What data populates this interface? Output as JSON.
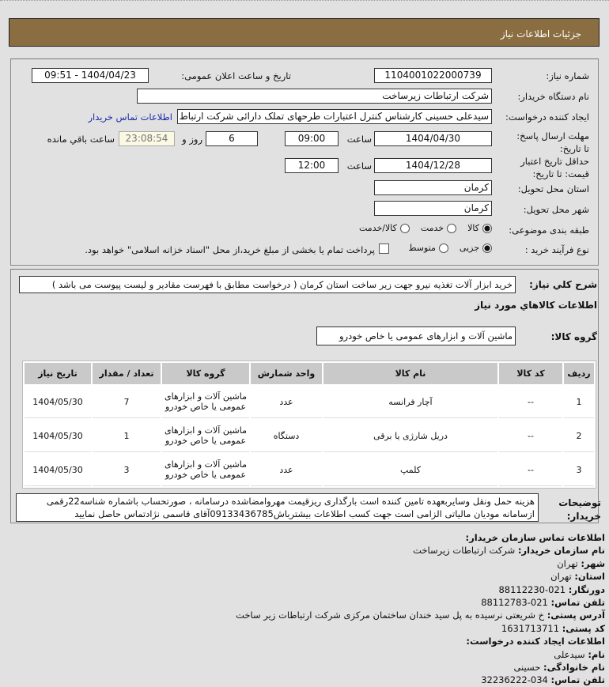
{
  "header": {
    "title": "جزئیات اطلاعات نیاز"
  },
  "form": {
    "need_number_label": "شماره نیاز:",
    "need_number": "1104001022000739",
    "announce_label": "تاریخ و ساعت اعلان عمومی:",
    "announce_value": "1404/04/23 - 09:51",
    "buyer_label": "نام دستگاه خریدار:",
    "buyer_value": "شرکت ارتباطات زیرساخت",
    "creator_label": "ایجاد کننده درخواست:",
    "creator_value": "سیدعلی حسینی کارشناس کنترل اعتبارات طرحهای تملک دارائی شرکت ارتباط",
    "contact_link": "اطلاعات تماس خریدار",
    "deadline_label": "مهلت ارسال پاسخ: تا تاریخ:",
    "deadline_date": "1404/04/30",
    "time_label": "ساعت",
    "deadline_time": "09:00",
    "days": "6",
    "days_label": "روز و",
    "remaining": "23:08:54",
    "remaining_label": "ساعت باقي مانده",
    "validity_label": "حداقل تاریخ اعتبار قیمت: تا تاریخ:",
    "validity_date": "1404/12/28",
    "validity_time": "12:00",
    "province_label": "استان محل تحویل:",
    "province_value": "کرمان",
    "city_label": "شهر محل تحویل:",
    "city_value": "کرمان",
    "category_label": "طبقه بندی موضوعی:",
    "category_options": [
      {
        "label": "کالا",
        "selected": true
      },
      {
        "label": "خدمت",
        "selected": false
      },
      {
        "label": "کالا/خدمت",
        "selected": false
      }
    ],
    "process_label": "نوع فرآیند خرید :",
    "process_options": [
      {
        "label": "جزیی",
        "selected": true
      },
      {
        "label": "متوسط",
        "selected": false
      }
    ],
    "payment_checkbox_label": "پرداخت تمام یا بخشی از مبلغ خرید،از محل \"اسناد خزانه اسلامی\" خواهد بود."
  },
  "details": {
    "summary_label": "شرح کلي نیاز:",
    "summary_value": "خرید ابزار آلات تغذیه نیرو جهت زیر ساخت استان کرمان ( درخواست مطابق با فهرست مقادیر و لیست پیوست می باشد )",
    "goods_title": "اطلاعات کالاهاي مورد نیاز",
    "group_label": "گروه کالا:",
    "group_value": "ماشین آلات و ابزارهای عمومی یا خاص خودرو",
    "table": {
      "headers": [
        "ردیف",
        "کد کالا",
        "نام کالا",
        "واحد شمارش",
        "گروه کالا",
        "تعداد / مقدار",
        "تاریخ نیاز"
      ],
      "rows": [
        [
          "1",
          "--",
          "آچار فرانسه",
          "عدد",
          "ماشین آلات و ابزارهای عمومی یا خاص خودرو",
          "7",
          "1404/05/30"
        ],
        [
          "2",
          "--",
          "دریل شارژی یا برقی",
          "دستگاه",
          "ماشین آلات و ابزارهای عمومی یا خاص خودرو",
          "1",
          "1404/05/30"
        ],
        [
          "3",
          "--",
          "کلمپ",
          "عدد",
          "ماشین آلات و ابزارهای عمومی یا خاص خودرو",
          "3",
          "1404/05/30"
        ]
      ]
    },
    "notes_label": "توضیحات خریدار:",
    "notes_value": "هزینه حمل ونقل وسایربعهده تامین کننده است بارگذاری ریزقیمت مهروامضاشده درسامانه ، صورتحساب باشماره شناسه22رقمی ازسامانه مودیان مالیاتی الزامی است جهت کسب اطلاعات بیشترباش09133436785آقای قاسمی نژادتماس حاصل نمایید"
  },
  "contact": {
    "org_title": "اطلاعات تماس سازمان خریدار:",
    "lines": [
      {
        "k": "نام سازمان خریدار:",
        "v": "شرکت ارتباطات زیرساخت"
      },
      {
        "k": "شهر:",
        "v": "تهران"
      },
      {
        "k": "استان:",
        "v": "تهران"
      },
      {
        "k": "دورنگار:",
        "v": "021-88112230"
      },
      {
        "k": "تلفن تماس:",
        "v": "021-88112783"
      },
      {
        "k": "آدرس پستی:",
        "v": "خ شریعتی نرسیده به پل سید خندان ساختمان مرکزی شرکت ارتباطات زیر ساخت"
      },
      {
        "k": "کد پستی:",
        "v": "1631713711"
      }
    ],
    "creator_title": "اطلاعات ایجاد کننده درخواست:",
    "creator_lines": [
      {
        "k": "نام:",
        "v": "سیدعلی"
      },
      {
        "k": "نام خانوادگی:",
        "v": "حسینی"
      },
      {
        "k": "تلفن تماس:",
        "v": "034-32236222"
      }
    ]
  },
  "colors": {
    "header": "#8b6d42",
    "link": "#1a2aa8",
    "background": "#e1e1e1"
  }
}
